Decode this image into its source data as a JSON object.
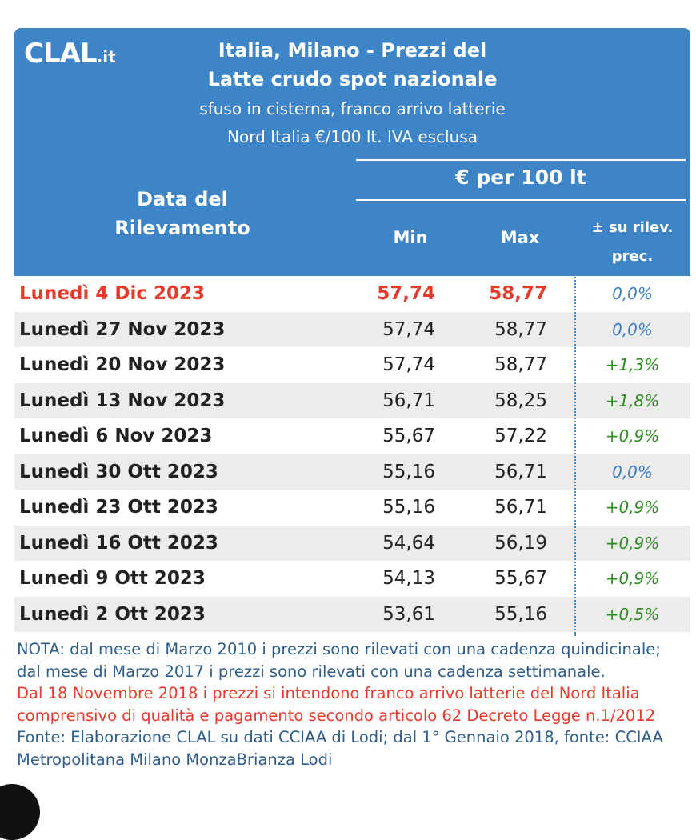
{
  "header": {
    "logo_main": "CLAL",
    "logo_suffix": ".it",
    "title_line1": "Italia, Milano - Prezzi del",
    "title_line2": "Latte crudo spot nazionale",
    "subtitle_line1": "sfuso in cisterna, franco arrivo latterie",
    "subtitle_line2": "Nord Italia €/100 lt. IVA esclusa",
    "unit": "€ per 100 lt",
    "date_col_line1": "Data del",
    "date_col_line2": "Rilevamento",
    "min_label": "Min",
    "max_label": "Max",
    "pct_line1": "± su rilev.",
    "pct_line2": "prec."
  },
  "rows": [
    {
      "date": "Lunedì 4 Dic 2023",
      "min": "57,74",
      "max": "58,77",
      "pct": "0,0%",
      "trend": "neutral"
    },
    {
      "date": "Lunedì 27 Nov 2023",
      "min": "57,74",
      "max": "58,77",
      "pct": "0,0%",
      "trend": "neutral"
    },
    {
      "date": "Lunedì 20 Nov 2023",
      "min": "57,74",
      "max": "58,77",
      "pct": "+1,3%",
      "trend": "up"
    },
    {
      "date": "Lunedì 13 Nov 2023",
      "min": "56,71",
      "max": "58,25",
      "pct": "+1,8%",
      "trend": "up"
    },
    {
      "date": "Lunedì 6 Nov 2023",
      "min": "55,67",
      "max": "57,22",
      "pct": "+0,9%",
      "trend": "up"
    },
    {
      "date": "Lunedì 30 Ott 2023",
      "min": "55,16",
      "max": "56,71",
      "pct": "0,0%",
      "trend": "neutral"
    },
    {
      "date": "Lunedì 23 Ott 2023",
      "min": "55,16",
      "max": "56,71",
      "pct": "+0,9%",
      "trend": "up"
    },
    {
      "date": "Lunedì 16 Ott 2023",
      "min": "54,64",
      "max": "56,19",
      "pct": "+0,9%",
      "trend": "up"
    },
    {
      "date": "Lunedì 9 Ott 2023",
      "min": "54,13",
      "max": "55,67",
      "pct": "+0,9%",
      "trend": "up"
    },
    {
      "date": "Lunedì 2 Ott 2023",
      "min": "53,61",
      "max": "55,16",
      "pct": "+0,5%",
      "trend": "up"
    }
  ],
  "notes": {
    "nota": "NOTA: dal mese di Marzo 2010 i prezzi sono rilevati con una cadenza quindicinale; dal mese di Marzo 2017 i prezzi sono rilevati con una cadenza settimanale.",
    "red_note": "Dal 18 Novembre 2018 i prezzi si intendono franco arrivo latterie del Nord Italia comprensivo di qualità e pagamento secondo articolo 62 Decreto Legge n.1/2012",
    "fonte": "Fonte: Elaborazione CLAL su dati CCIAA di Lodi; dal 1° Gennaio 2018, fonte: CCIAA Metropolitana Milano MonzaBrianza Lodi"
  },
  "colors": {
    "header_bg": "#3d85c6",
    "highlight_red": "#e53b2c",
    "trend_up": "#2e8b22",
    "trend_neutral": "#3d7cc0"
  }
}
